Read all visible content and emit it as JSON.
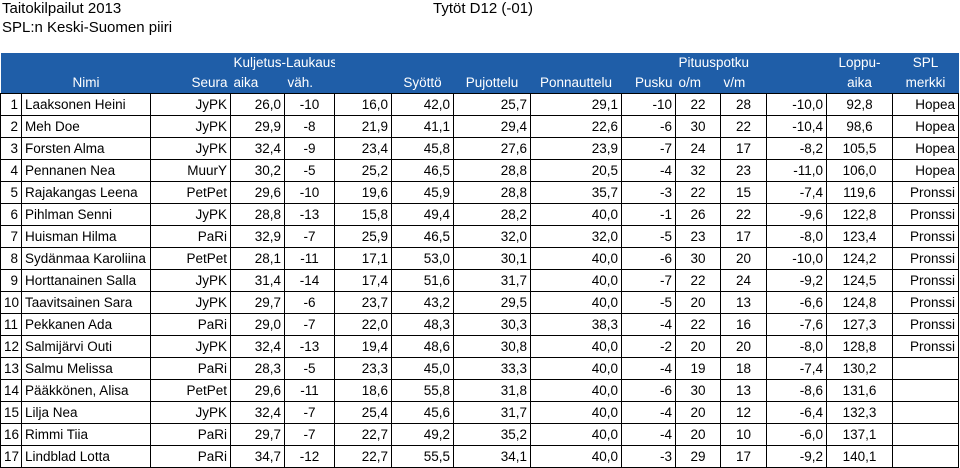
{
  "header": {
    "event": "Taitokilpailut 2013",
    "district": "SPL:n Keski-Suomen piiri",
    "class": "Tytöt D12 (-01)"
  },
  "columns": {
    "group_kuljetus": "Kuljetus-Laukaus",
    "group_pituus": "Pituuspotku",
    "group_loppu": "Loppu-",
    "group_spl": "SPL",
    "nimi": "Nimi",
    "seura": "Seura",
    "aika": "aika",
    "vah": "väh.",
    "syotto": "Syöttö",
    "pujottelu": "Pujottelu",
    "ponnauttelu": "Ponnauttelu",
    "pusku": "Pusku",
    "om": "o/m",
    "vm": "v/m",
    "loppu_aika": "aika",
    "merkki": "merkki"
  },
  "rows": [
    [
      "1",
      "Laaksonen Heini",
      "JyPK",
      "26,0",
      "-10",
      "16,0",
      "42,0",
      "25,7",
      "29,1",
      "-10",
      "22",
      "28",
      "-10,0",
      "92,8",
      "Hopea"
    ],
    [
      "2",
      "Meh Doe",
      "JyPK",
      "29,9",
      "-8",
      "21,9",
      "41,1",
      "29,4",
      "22,6",
      "-6",
      "30",
      "22",
      "-10,4",
      "98,6",
      "Hopea"
    ],
    [
      "3",
      "Forsten Alma",
      "JyPK",
      "32,4",
      "-9",
      "23,4",
      "45,8",
      "27,6",
      "23,9",
      "-7",
      "24",
      "17",
      "-8,2",
      "105,5",
      "Hopea"
    ],
    [
      "4",
      "Pennanen Nea",
      "MuurY",
      "30,2",
      "-5",
      "25,2",
      "46,5",
      "28,8",
      "20,5",
      "-4",
      "32",
      "23",
      "-11,0",
      "106,0",
      "Hopea"
    ],
    [
      "5",
      "Rajakangas Leena",
      "PetPet",
      "29,6",
      "-10",
      "19,6",
      "45,9",
      "28,8",
      "35,7",
      "-3",
      "22",
      "15",
      "-7,4",
      "119,6",
      "Pronssi"
    ],
    [
      "6",
      "Pihlman Senni",
      "JyPK",
      "28,8",
      "-13",
      "15,8",
      "49,4",
      "28,2",
      "40,0",
      "-1",
      "26",
      "22",
      "-9,6",
      "122,8",
      "Pronssi"
    ],
    [
      "7",
      "Huisman Hilma",
      "PaRi",
      "32,9",
      "-7",
      "25,9",
      "46,5",
      "32,0",
      "32,0",
      "-5",
      "23",
      "17",
      "-8,0",
      "123,4",
      "Pronssi"
    ],
    [
      "8",
      "Sydänmaa Karoliina",
      "PetPet",
      "28,1",
      "-11",
      "17,1",
      "53,0",
      "30,1",
      "40,0",
      "-6",
      "30",
      "20",
      "-10,0",
      "124,2",
      "Pronssi"
    ],
    [
      "9",
      "Horttanainen Salla",
      "JyPK",
      "31,4",
      "-14",
      "17,4",
      "51,6",
      "31,7",
      "40,0",
      "-7",
      "22",
      "24",
      "-9,2",
      "124,5",
      "Pronssi"
    ],
    [
      "10",
      "Taavitsainen Sara",
      "JyPK",
      "29,7",
      "-6",
      "23,7",
      "43,2",
      "29,5",
      "40,0",
      "-5",
      "20",
      "13",
      "-6,6",
      "124,8",
      "Pronssi"
    ],
    [
      "11",
      "Pekkanen Ada",
      "PaRi",
      "29,0",
      "-7",
      "22,0",
      "48,3",
      "30,3",
      "38,3",
      "-4",
      "22",
      "16",
      "-7,6",
      "127,3",
      "Pronssi"
    ],
    [
      "12",
      "Salmijärvi Outi",
      "JyPK",
      "32,4",
      "-13",
      "19,4",
      "48,6",
      "30,8",
      "40,0",
      "-2",
      "20",
      "20",
      "-8,0",
      "128,8",
      "Pronssi"
    ],
    [
      "13",
      "Salmu Melissa",
      "PaRi",
      "28,3",
      "-5",
      "23,3",
      "45,0",
      "33,3",
      "40,0",
      "-4",
      "19",
      "18",
      "-7,4",
      "130,2",
      ""
    ],
    [
      "14",
      "Pääkkönen, Alisa",
      "PetPet",
      "29,6",
      "-11",
      "18,6",
      "55,8",
      "31,8",
      "40,0",
      "-6",
      "30",
      "13",
      "-8,6",
      "131,6",
      ""
    ],
    [
      "15",
      "Lilja Nea",
      "JyPK",
      "32,4",
      "-7",
      "25,4",
      "45,6",
      "31,7",
      "40,0",
      "-4",
      "20",
      "12",
      "-6,4",
      "132,3",
      ""
    ],
    [
      "16",
      "Rimmi Tiia",
      "PaRi",
      "29,7",
      "-7",
      "22,7",
      "49,2",
      "35,2",
      "40,0",
      "-4",
      "20",
      "10",
      "-6,0",
      "137,1",
      ""
    ],
    [
      "17",
      "Lindblad Lotta",
      "PaRi",
      "34,7",
      "-12",
      "22,7",
      "55,5",
      "34,1",
      "40,0",
      "-3",
      "29",
      "17",
      "-9,2",
      "140,1",
      ""
    ]
  ]
}
